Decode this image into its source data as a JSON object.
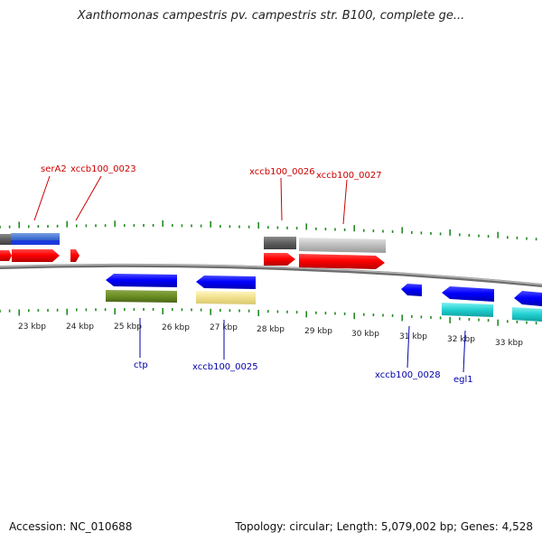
{
  "title": "Xanthomonas campestris pv. campestris str. B100, complete ge...",
  "footer": {
    "accession": "Accession: NC_010688",
    "summary": "Topology: circular; Length: 5,079,002 bp; Genes: 4,528"
  },
  "colors": {
    "forward_cds": "#ff0000",
    "reverse_cds": "#0000ff",
    "forward_label": "#cc0000",
    "reverse_label": "#0000aa",
    "tick": "#228b22",
    "backbone": "#888888"
  },
  "scale": {
    "unit": "kbp",
    "labels": [
      "23 kbp",
      "24 kbp",
      "25 kbp",
      "26 kbp",
      "27 kbp",
      "28 kbp",
      "29 kbp",
      "30 kbp",
      "31 kbp",
      "32 kbp",
      "33 kbp"
    ]
  },
  "labels_top": [
    "serA2",
    "xccb100_0023",
    "xccb100_0026",
    "xccb100_0027"
  ],
  "labels_bottom": [
    "ctp",
    "xccb100_0025",
    "xccb100_0028",
    "egl1"
  ]
}
